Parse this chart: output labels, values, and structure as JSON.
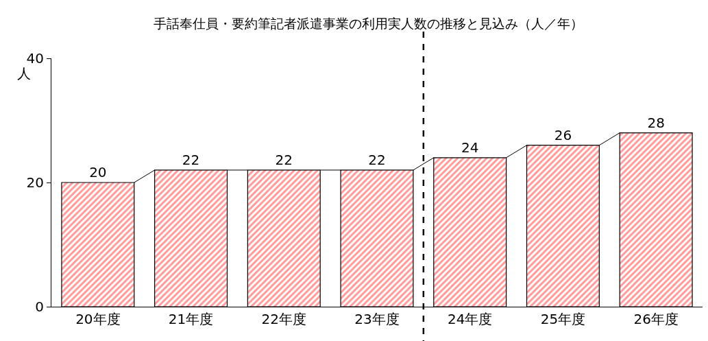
{
  "chart_data": {
    "type": "bar",
    "title": "手話奉仕員・要約筆記者派遣事業の利用実人数の推移と見込み（人／年）",
    "ylabel": "人",
    "categories": [
      "20年度",
      "21年度",
      "22年度",
      "23年度",
      "24年度",
      "25年度",
      "26年度"
    ],
    "values": [
      20,
      22,
      22,
      22,
      24,
      26,
      28
    ],
    "color": "#ff3333",
    "ylim": [
      0,
      40
    ],
    "yticks": [
      0,
      20,
      40
    ],
    "data_labels": true
  }
}
